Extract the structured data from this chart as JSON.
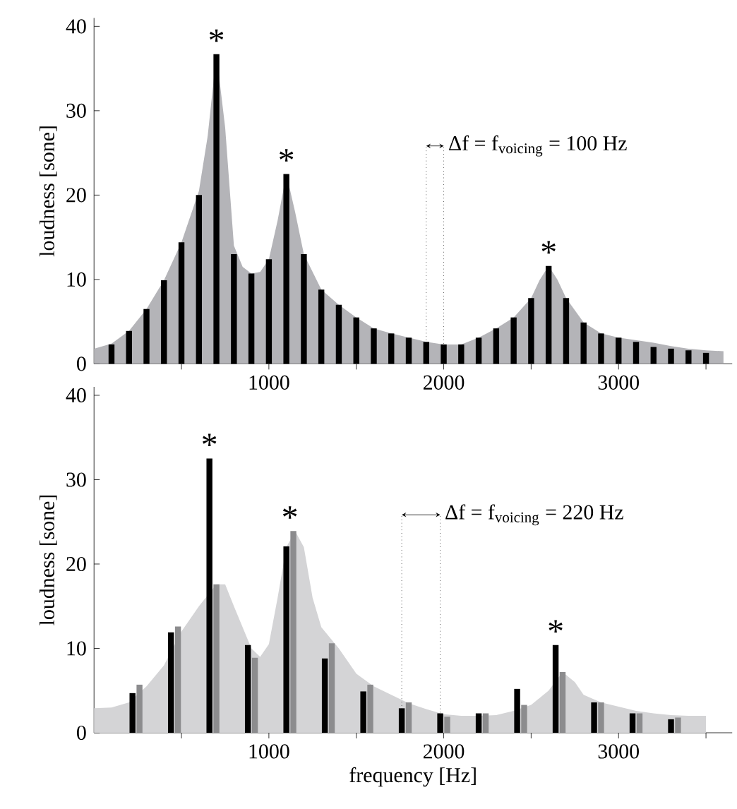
{
  "chart_data": [
    {
      "type": "bar",
      "ylabel": "loudness [sone]",
      "xlim": [
        0,
        3650
      ],
      "ylim": [
        0,
        41
      ],
      "xticks": [
        {
          "value": 500,
          "label": null
        },
        1000,
        {
          "value": 1500,
          "label": null
        },
        2000,
        {
          "value": 2500,
          "label": null
        },
        3000,
        {
          "value": 3500,
          "label": null
        }
      ],
      "yticks": [
        0,
        10,
        20,
        30,
        40
      ],
      "series": [
        {
          "type": "area",
          "color": "#b4b4b8",
          "x": [
            0,
            100,
            200,
            300,
            400,
            500,
            600,
            650,
            700,
            750,
            800,
            850,
            900,
            950,
            1000,
            1050,
            1100,
            1150,
            1200,
            1300,
            1400,
            1500,
            1600,
            1700,
            1800,
            1900,
            2000,
            2100,
            2200,
            2300,
            2400,
            2500,
            2550,
            2600,
            2650,
            2700,
            2800,
            2900,
            3000,
            3100,
            3200,
            3300,
            3400,
            3500,
            3600
          ],
          "values": [
            1.8,
            2.4,
            3.9,
            6.5,
            9.9,
            14.4,
            20.5,
            27,
            36.7,
            28,
            14,
            11.5,
            10.7,
            10.9,
            12.4,
            17,
            22.5,
            18,
            13,
            8.8,
            7,
            5.5,
            4.2,
            3.6,
            3.1,
            2.6,
            2.3,
            2.3,
            3.1,
            4.2,
            5.5,
            7.8,
            10,
            11.6,
            10,
            7.8,
            4.9,
            3.6,
            3.1,
            2.8,
            2.5,
            2.1,
            1.8,
            1.6,
            1.5
          ]
        },
        {
          "color": "#000000",
          "x": [
            100,
            200,
            300,
            400,
            500,
            600,
            700,
            800,
            900,
            1000,
            1100,
            1200,
            1300,
            1400,
            1500,
            1600,
            1700,
            1800,
            1900,
            2000,
            2100,
            2200,
            2300,
            2400,
            2500,
            2600,
            2700,
            2800,
            2900,
            3000,
            3100,
            3200,
            3300,
            3400,
            3500
          ],
          "values": [
            2.3,
            3.9,
            6.5,
            9.9,
            14.4,
            20,
            36.7,
            13,
            10.7,
            12.4,
            22.5,
            13,
            8.8,
            7,
            5.5,
            4.2,
            3.6,
            3.1,
            2.6,
            2.3,
            2.3,
            3.1,
            4.2,
            5.5,
            7.8,
            11.6,
            7.8,
            4.9,
            3.6,
            3.1,
            2.6,
            2,
            1.8,
            1.6,
            1.3
          ]
        }
      ],
      "ref_lines": [
        {
          "axis": "x",
          "value": 1900,
          "line_style": "dotted"
        },
        {
          "axis": "x",
          "value": 2000,
          "line_style": "dotted"
        }
      ],
      "annotations": [
        "Δf = f$_{voicing}$ = 100 Hz",
        {
          "text": "*",
          "x": 700,
          "y": 36.7
        },
        {
          "text": "*",
          "x": 1100,
          "y": 22.5
        },
        {
          "text": "*",
          "x": 2600,
          "y": 11.6
        }
      ]
    },
    {
      "type": "bar",
      "ylabel": "loudness [sone]",
      "xlabel": "frequency [Hz]",
      "xlim": [
        0,
        3650
      ],
      "ylim": [
        0,
        41
      ],
      "xticks": [
        {
          "value": 500,
          "label": null
        },
        1000,
        {
          "value": 1500,
          "label": null
        },
        2000,
        {
          "value": 2500,
          "label": null
        },
        3000,
        {
          "value": 3500,
          "label": null
        }
      ],
      "yticks": [
        0,
        10,
        20,
        30,
        40
      ],
      "series": [
        {
          "type": "area",
          "color": "#d4d4d6",
          "x": [
            0,
            100,
            200,
            300,
            400,
            500,
            600,
            700,
            750,
            800,
            900,
            950,
            1000,
            1050,
            1100,
            1150,
            1200,
            1250,
            1300,
            1400,
            1500,
            1600,
            1700,
            1800,
            1900,
            2000,
            2100,
            2200,
            2300,
            2400,
            2500,
            2600,
            2680,
            2750,
            2800,
            2900,
            3000,
            3100,
            3200,
            3300,
            3400,
            3500
          ],
          "values": [
            2.9,
            3,
            3.6,
            5.5,
            8,
            12,
            15,
            17.6,
            17.6,
            15,
            10,
            9,
            10.5,
            16,
            22,
            23.9,
            22,
            16,
            12.5,
            10,
            7,
            5.5,
            4.5,
            3.5,
            2.8,
            2.2,
            2,
            2,
            2.1,
            2.6,
            3.3,
            5,
            7.2,
            6,
            4.5,
            3.6,
            3.1,
            2.6,
            2.3,
            2.1,
            2,
            2
          ]
        },
        {
          "color": "#000000",
          "x": [
            220,
            440,
            660,
            880,
            1100,
            1320,
            1540,
            1760,
            1980,
            2200,
            2420,
            2640,
            2860,
            3080,
            3300
          ],
          "values": [
            4.7,
            11.9,
            32.5,
            10.4,
            22.1,
            8.8,
            4.9,
            2.9,
            2.3,
            2.3,
            5.2,
            10.4,
            3.6,
            2.3,
            1.6
          ]
        },
        {
          "color": "#8c8c8e",
          "x": [
            260,
            480,
            700,
            920,
            1140,
            1360,
            1580,
            1800,
            2020,
            2240,
            2460,
            2680,
            2900,
            3120,
            3340
          ],
          "values": [
            5.7,
            12.6,
            17.6,
            8.9,
            23.9,
            10.6,
            5.7,
            3.6,
            1.9,
            2.3,
            3.3,
            7.2,
            3.6,
            2.3,
            1.8
          ]
        }
      ],
      "ref_lines": [
        {
          "axis": "x",
          "value": 1760,
          "line_style": "dotted"
        },
        {
          "axis": "x",
          "value": 1980,
          "line_style": "dotted"
        }
      ],
      "annotations": [
        "Δf = f$_{voicing}$ = 220 Hz",
        {
          "text": "*",
          "x": 660,
          "y": 32.5
        },
        {
          "text": "*",
          "x": 1120,
          "y": 23.9
        },
        {
          "text": "*",
          "x": 2640,
          "y": 10.4
        }
      ]
    }
  ]
}
